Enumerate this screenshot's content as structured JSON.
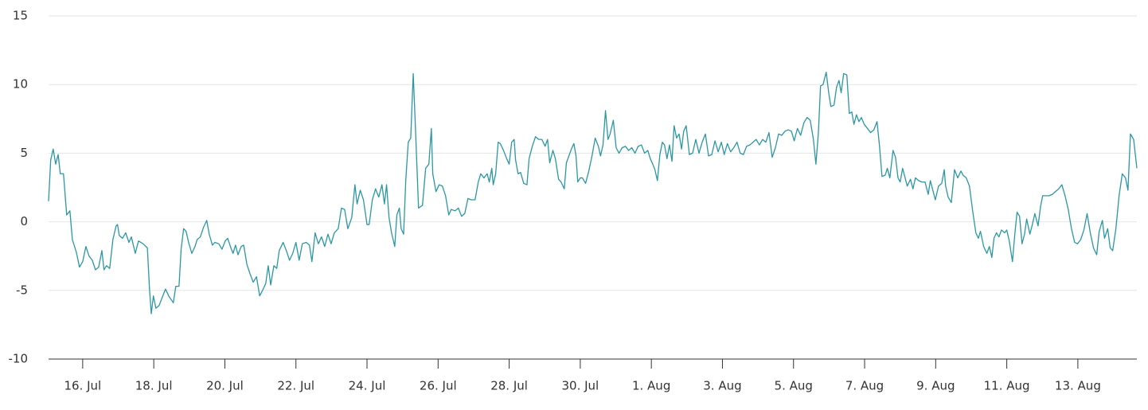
{
  "chart_data": {
    "type": "line",
    "color": "#2a97a3",
    "grid": true,
    "xlim": [
      15.04,
      45.66
    ],
    "xticks": [
      {
        "value": 16,
        "label": "16. Jul"
      },
      {
        "value": 18,
        "label": "18. Jul"
      },
      {
        "value": 20,
        "label": "20. Jul"
      },
      {
        "value": 22,
        "label": "22. Jul"
      },
      {
        "value": 24,
        "label": "24. Jul"
      },
      {
        "value": 26,
        "label": "26. Jul"
      },
      {
        "value": 28,
        "label": "28. Jul"
      },
      {
        "value": 30,
        "label": "30. Jul"
      },
      {
        "value": 32,
        "label": "1. Aug"
      },
      {
        "value": 34,
        "label": "3. Aug"
      },
      {
        "value": 36,
        "label": "5. Aug"
      },
      {
        "value": 38,
        "label": "7. Aug"
      },
      {
        "value": 40,
        "label": "9. Aug"
      },
      {
        "value": 42,
        "label": "11. Aug"
      },
      {
        "value": 44,
        "label": "13. Aug"
      }
    ],
    "ylim": [
      -10,
      15
    ],
    "yticks": [
      -10,
      -5,
      0,
      5,
      10,
      15
    ],
    "x": [
      15.04,
      15.1,
      15.17,
      15.24,
      15.31,
      15.37,
      15.46,
      15.55,
      15.64,
      15.71,
      15.82,
      15.91,
      16.0,
      16.09,
      16.18,
      16.27,
      16.36,
      16.45,
      16.54,
      16.6,
      16.67,
      16.76,
      16.85,
      16.94,
      16.98,
      17.03,
      17.12,
      17.21,
      17.3,
      17.37,
      17.48,
      17.57,
      17.7,
      17.82,
      17.88,
      17.93,
      17.99,
      18.06,
      18.15,
      18.24,
      18.33,
      18.42,
      18.55,
      18.62,
      18.71,
      18.77,
      18.84,
      18.91,
      18.98,
      19.07,
      19.16,
      19.22,
      19.31,
      19.4,
      19.49,
      19.56,
      19.65,
      19.72,
      19.83,
      19.92,
      20.01,
      20.08,
      20.17,
      20.23,
      20.3,
      20.37,
      20.46,
      20.53,
      20.62,
      20.71,
      20.8,
      20.89,
      20.98,
      21.06,
      21.15,
      21.22,
      21.29,
      21.38,
      21.46,
      21.53,
      21.64,
      21.73,
      21.82,
      21.91,
      22.0,
      22.09,
      22.18,
      22.29,
      22.38,
      22.45,
      22.54,
      22.63,
      22.72,
      22.81,
      22.9,
      22.99,
      23.08,
      23.19,
      23.28,
      23.37,
      23.46,
      23.57,
      23.66,
      23.72,
      23.81,
      23.9,
      24.0,
      24.06,
      24.15,
      24.24,
      24.33,
      24.42,
      24.49,
      24.55,
      24.62,
      24.69,
      24.78,
      24.84,
      24.91,
      24.96,
      25.03,
      25.09,
      25.16,
      25.23,
      25.3,
      25.36,
      25.45,
      25.56,
      25.65,
      25.74,
      25.81,
      25.85,
      25.94,
      26.03,
      26.12,
      26.21,
      26.3,
      26.37,
      26.48,
      26.57,
      26.66,
      26.75,
      26.84,
      26.93,
      27.04,
      27.13,
      27.2,
      27.29,
      27.38,
      27.44,
      27.51,
      27.55,
      27.62,
      27.69,
      27.75,
      27.84,
      27.93,
      28.0,
      28.07,
      28.14,
      28.18,
      28.25,
      28.32,
      28.41,
      28.5,
      28.56,
      28.65,
      28.74,
      28.83,
      28.92,
      29.01,
      29.08,
      29.14,
      29.23,
      29.3,
      29.39,
      29.46,
      29.55,
      29.61,
      29.68,
      29.75,
      29.82,
      29.88,
      29.93,
      30.0,
      30.06,
      30.15,
      30.24,
      30.33,
      30.42,
      30.51,
      30.57,
      30.64,
      30.71,
      30.78,
      30.84,
      30.93,
      31.01,
      31.09,
      31.18,
      31.27,
      31.36,
      31.45,
      31.54,
      31.63,
      31.72,
      31.81,
      31.9,
      31.97,
      32.04,
      32.1,
      32.17,
      32.24,
      32.31,
      32.37,
      32.44,
      32.51,
      32.58,
      32.64,
      32.71,
      32.78,
      32.85,
      32.91,
      32.98,
      33.07,
      33.16,
      33.25,
      33.34,
      33.43,
      33.52,
      33.61,
      33.7,
      33.79,
      33.88,
      33.97,
      34.05,
      34.14,
      34.23,
      34.32,
      34.41,
      34.5,
      34.59,
      34.68,
      34.77,
      34.86,
      34.95,
      35.04,
      35.13,
      35.22,
      35.31,
      35.4,
      35.49,
      35.58,
      35.67,
      35.76,
      35.85,
      35.94,
      36.02,
      36.11,
      36.2,
      36.29,
      36.38,
      36.47,
      36.56,
      36.63,
      36.7,
      36.76,
      36.83,
      36.92,
      36.99,
      37.05,
      37.14,
      37.21,
      37.28,
      37.34,
      37.41,
      37.5,
      37.57,
      37.64,
      37.7,
      37.77,
      37.84,
      37.91,
      37.99,
      38.08,
      38.17,
      38.26,
      38.35,
      38.42,
      38.49,
      38.58,
      38.64,
      38.71,
      38.8,
      38.87,
      38.94,
      39.0,
      39.07,
      39.14,
      39.2,
      39.29,
      39.36,
      39.43,
      39.52,
      39.61,
      39.7,
      39.79,
      39.85,
      39.92,
      39.99,
      40.08,
      40.17,
      40.24,
      40.28,
      40.35,
      40.44,
      40.53,
      40.62,
      40.71,
      40.77,
      40.86,
      40.95,
      41.04,
      41.13,
      41.2,
      41.26,
      41.35,
      41.44,
      41.51,
      41.58,
      41.64,
      41.71,
      41.78,
      41.85,
      41.94,
      42.0,
      42.07,
      42.16,
      42.23,
      42.29,
      42.36,
      42.43,
      42.5,
      42.56,
      42.65,
      42.72,
      42.79,
      42.88,
      42.95,
      43.01,
      43.1,
      43.19,
      43.28,
      43.37,
      43.46,
      43.55,
      43.64,
      43.73,
      43.82,
      43.91,
      43.99,
      44.08,
      44.17,
      44.26,
      44.35,
      44.44,
      44.53,
      44.6,
      44.69,
      44.75,
      44.84,
      44.91,
      44.98,
      45.07,
      45.16,
      45.25,
      45.34,
      45.41,
      45.48,
      45.57,
      45.66
    ],
    "values": [
      1.5,
      4.5,
      5.3,
      4.2,
      4.9,
      3.5,
      3.5,
      0.5,
      0.8,
      -1.3,
      -2.2,
      -3.3,
      -2.9,
      -1.8,
      -2.5,
      -2.8,
      -3.5,
      -3.3,
      -2.1,
      -3.5,
      -3.2,
      -3.4,
      -1.3,
      -0.3,
      -0.2,
      -1.0,
      -1.2,
      -0.8,
      -1.5,
      -1.1,
      -2.3,
      -1.4,
      -1.6,
      -1.9,
      -4.9,
      -6.7,
      -5.4,
      -6.3,
      -6.1,
      -5.5,
      -4.9,
      -5.4,
      -5.9,
      -4.7,
      -4.7,
      -2.0,
      -0.5,
      -0.7,
      -1.5,
      -2.3,
      -1.8,
      -1.3,
      -1.1,
      -0.4,
      0.1,
      -0.9,
      -1.7,
      -1.5,
      -1.6,
      -2.0,
      -1.4,
      -1.2,
      -1.9,
      -2.3,
      -1.7,
      -2.4,
      -1.8,
      -1.7,
      -3.1,
      -3.8,
      -4.4,
      -4.0,
      -5.4,
      -5.0,
      -4.5,
      -3.2,
      -4.6,
      -3.2,
      -3.4,
      -2.1,
      -1.5,
      -2.1,
      -2.8,
      -2.3,
      -1.5,
      -2.8,
      -1.6,
      -1.5,
      -1.7,
      -2.9,
      -0.8,
      -1.6,
      -1.1,
      -1.8,
      -0.9,
      -1.6,
      -0.8,
      -0.5,
      1.0,
      0.9,
      -0.5,
      0.3,
      2.7,
      1.3,
      2.3,
      1.6,
      -0.2,
      -0.2,
      1.6,
      2.4,
      1.8,
      2.7,
      1.3,
      2.7,
      0.3,
      -0.8,
      -1.8,
      0.5,
      1.0,
      -0.5,
      -0.9,
      3.0,
      5.8,
      6.1,
      10.8,
      7.0,
      1.0,
      1.2,
      3.9,
      4.2,
      6.8,
      3.5,
      2.2,
      2.7,
      2.6,
      1.9,
      0.5,
      0.9,
      0.8,
      1.0,
      0.4,
      0.6,
      1.7,
      1.6,
      1.6,
      2.9,
      3.5,
      3.2,
      3.5,
      2.9,
      3.9,
      2.7,
      3.5,
      5.8,
      5.7,
      5.2,
      4.6,
      4.2,
      5.8,
      6.0,
      4.5,
      3.5,
      3.6,
      2.8,
      2.7,
      4.6,
      5.5,
      6.2,
      6.0,
      6.0,
      5.5,
      6.0,
      4.3,
      5.2,
      4.6,
      3.1,
      2.9,
      2.4,
      4.3,
      4.8,
      5.3,
      5.7,
      4.8,
      2.9,
      3.2,
      3.2,
      2.8,
      3.7,
      4.8,
      6.1,
      5.5,
      4.8,
      5.6,
      8.1,
      6.0,
      6.4,
      7.4,
      5.4,
      5.0,
      5.4,
      5.5,
      5.2,
      5.4,
      5.0,
      5.5,
      5.6,
      5.0,
      5.2,
      4.6,
      4.2,
      3.8,
      3.0,
      4.9,
      5.8,
      5.6,
      4.6,
      5.6,
      4.4,
      7.0,
      6.1,
      6.4,
      5.3,
      6.6,
      7.0,
      4.9,
      5.0,
      6.0,
      5.0,
      5.8,
      6.4,
      4.8,
      4.9,
      5.9,
      5.1,
      5.8,
      4.9,
      5.7,
      5.1,
      5.4,
      5.8,
      5.0,
      4.9,
      5.5,
      5.6,
      5.8,
      6.0,
      5.6,
      6.0,
      5.8,
      6.5,
      4.7,
      5.4,
      6.4,
      6.3,
      6.6,
      6.7,
      6.6,
      5.9,
      6.8,
      6.3,
      7.2,
      7.6,
      7.4,
      6.0,
      4.2,
      6.5,
      9.9,
      10.0,
      10.9,
      9.4,
      8.4,
      8.5,
      9.8,
      10.3,
      9.4,
      10.8,
      10.7,
      7.9,
      8.0,
      7.1,
      7.8,
      7.3,
      7.6,
      7.1,
      6.8,
      6.5,
      6.7,
      7.3,
      5.5,
      3.3,
      3.4,
      3.9,
      3.2,
      5.2,
      4.7,
      3.2,
      2.9,
      3.9,
      3.2,
      2.6,
      3.1,
      2.4,
      3.2,
      3.0,
      2.9,
      2.9,
      2.0,
      3.0,
      2.3,
      1.6,
      2.6,
      2.8,
      3.8,
      2.6,
      1.8,
      1.4,
      3.8,
      3.2,
      3.7,
      3.4,
      3.2,
      2.6,
      0.8,
      -0.8,
      -1.2,
      -0.7,
      -1.8,
      -2.3,
      -1.8,
      -2.6,
      -1.2,
      -0.8,
      -1.1,
      -0.6,
      -0.8,
      -0.6,
      -1.4,
      -2.9,
      -0.8,
      0.7,
      0.4,
      -1.6,
      -0.9,
      0.2,
      -0.9,
      -0.2,
      0.6,
      -0.3,
      1.1,
      1.9,
      1.9,
      1.9,
      2.0,
      2.2,
      2.4,
      2.7,
      1.9,
      0.9,
      -0.5,
      -1.5,
      -1.6,
      -1.3,
      -0.6,
      0.6,
      -0.8,
      -1.9,
      -2.4,
      -0.7,
      0.1,
      -1.2,
      -0.5,
      -1.9,
      -2.1,
      -0.5,
      1.9,
      3.5,
      3.2,
      2.3,
      6.4,
      6.0,
      3.9
    ]
  }
}
